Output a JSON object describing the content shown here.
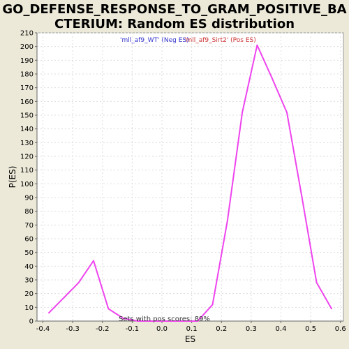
{
  "chart_data": {
    "type": "line",
    "title_lines": [
      "GO_DEFENSE_RESPONSE_TO_GRAM_POSITIVE_BA",
      "CTERIUM: Random ES distribution"
    ],
    "xlabel": "ES",
    "ylabel": "P(ES)",
    "xlim": [
      -0.42,
      0.61
    ],
    "ylim": [
      0,
      210
    ],
    "xticks": [
      "-0.4",
      "-0.3",
      "-0.2",
      "-0.1",
      "0.0",
      "0.1",
      "0.2",
      "0.3",
      "0.4",
      "0.5",
      "0.6"
    ],
    "xtick_values": [
      -0.4,
      -0.3,
      -0.2,
      -0.1,
      0.0,
      0.1,
      0.2,
      0.3,
      0.4,
      0.5,
      0.6
    ],
    "yticks": [
      "0",
      "10",
      "20",
      "30",
      "40",
      "50",
      "60",
      "70",
      "80",
      "90",
      "100",
      "110",
      "120",
      "130",
      "140",
      "150",
      "160",
      "170",
      "180",
      "190",
      "200",
      "210"
    ],
    "ytick_values": [
      0,
      10,
      20,
      30,
      40,
      50,
      60,
      70,
      80,
      90,
      100,
      110,
      120,
      130,
      140,
      150,
      160,
      170,
      180,
      190,
      200,
      210
    ],
    "grid": true,
    "legend_placement": "top-center",
    "legend": [
      {
        "label": "'mll_af9_WT' (Neg ES)",
        "color": "#3333cc"
      },
      {
        "label": "'mll_af9_Sirt2' (Pos ES)",
        "color": "#cc3333"
      }
    ],
    "annotation": "Sets with pos scores: 89%",
    "series": [
      {
        "color": "#ee44ee",
        "x": [
          -0.38,
          -0.33,
          -0.28,
          -0.23,
          -0.18,
          -0.13,
          -0.08,
          -0.03,
          0.02,
          0.07,
          0.12,
          0.17,
          0.22,
          0.27,
          0.32,
          0.37,
          0.42,
          0.47,
          0.52,
          0.57
        ],
        "y": [
          6,
          17,
          28,
          44,
          9,
          2,
          0,
          0,
          0,
          0,
          0,
          12,
          73,
          152,
          201,
          177,
          152,
          91,
          28,
          9
        ]
      }
    ]
  }
}
